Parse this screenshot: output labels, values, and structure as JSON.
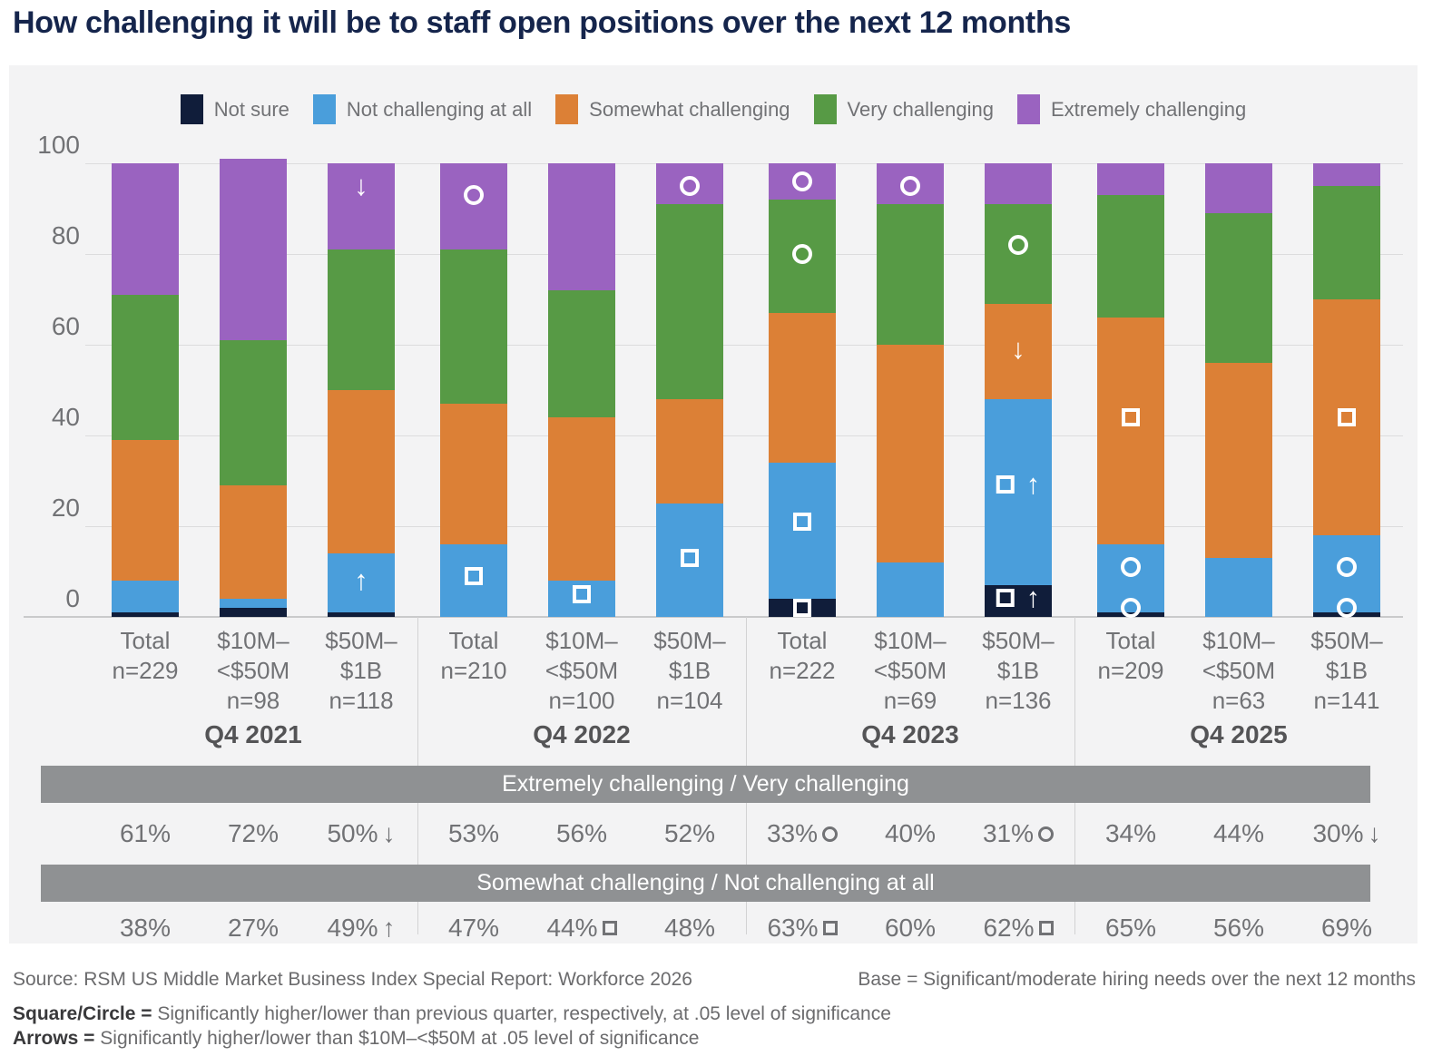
{
  "title": "How challenging it will be to staff open positions over the next 12 months",
  "colors": {
    "not_sure": "#101d3a",
    "not_challenging": "#4a9edb",
    "somewhat": "#dc8036",
    "very": "#579a45",
    "extremely": "#9a63c0",
    "panel_bg": "#f3f3f4",
    "band_gray": "#8f9193",
    "title_navy": "#15254c",
    "text_gray": "#717275"
  },
  "icons": {
    "arrow_up": "↑",
    "arrow_down": "↓"
  },
  "legend": {
    "items": [
      {
        "key": "not_sure",
        "label": "Not sure"
      },
      {
        "key": "not_challenging",
        "label": "Not challenging at all"
      },
      {
        "key": "somewhat",
        "label": "Somewhat challenging"
      },
      {
        "key": "very",
        "label": "Very challenging"
      },
      {
        "key": "extremely",
        "label": "Extremely challenging"
      }
    ]
  },
  "y_axis": {
    "ticks": [
      "100",
      "80",
      "60",
      "40",
      "20",
      "0"
    ]
  },
  "chart_data": {
    "type": "bar",
    "stacked": true,
    "ylim": [
      0,
      100
    ],
    "grid": true,
    "legend_position": "top",
    "series_order": [
      "Not sure",
      "Not challenging at all",
      "Somewhat challenging",
      "Very challenging",
      "Extremely challenging"
    ],
    "groups": [
      {
        "quarter": "Q4 2021",
        "bars": [
          {
            "label_lines": [
              "Total"
            ],
            "n": "n=229",
            "values": {
              "not_sure": 1,
              "not_challenging": 7,
              "somewhat": 31,
              "very": 32,
              "extremely": 29
            },
            "markers": []
          },
          {
            "label_lines": [
              "$10M–",
              "<$50M"
            ],
            "n": "n=98",
            "values": {
              "not_sure": 2,
              "not_challenging": 2,
              "somewhat": 25,
              "very": 32,
              "extremely": 40
            },
            "markers": []
          },
          {
            "label_lines": [
              "$50M–",
              "$1B"
            ],
            "n": "n=118",
            "values": {
              "not_sure": 1,
              "not_challenging": 13,
              "somewhat": 36,
              "very": 31,
              "extremely": 19
            },
            "markers": [
              {
                "type": "arrow-down",
                "y": 95
              },
              {
                "type": "arrow-up",
                "y": 8
              }
            ]
          }
        ]
      },
      {
        "quarter": "Q4 2022",
        "bars": [
          {
            "label_lines": [
              "Total"
            ],
            "n": "n=210",
            "values": {
              "not_sure": 0,
              "not_challenging": 16,
              "somewhat": 31,
              "very": 34,
              "extremely": 19
            },
            "markers": [
              {
                "type": "circle",
                "y": 93
              },
              {
                "type": "square",
                "y": 9
              }
            ]
          },
          {
            "label_lines": [
              "$10M–",
              "<$50M"
            ],
            "n": "n=100",
            "values": {
              "not_sure": 0,
              "not_challenging": 8,
              "somewhat": 36,
              "very": 28,
              "extremely": 28
            },
            "markers": [
              {
                "type": "square",
                "y": 5
              }
            ]
          },
          {
            "label_lines": [
              "$50M–",
              "$1B"
            ],
            "n": "n=104",
            "values": {
              "not_sure": 0,
              "not_challenging": 25,
              "somewhat": 23,
              "very": 43,
              "extremely": 9
            },
            "markers": [
              {
                "type": "circle",
                "y": 95
              },
              {
                "type": "square",
                "y": 13
              }
            ]
          }
        ]
      },
      {
        "quarter": "Q4 2023",
        "bars": [
          {
            "label_lines": [
              "Total"
            ],
            "n": "n=222",
            "values": {
              "not_sure": 4,
              "not_challenging": 30,
              "somewhat": 33,
              "very": 25,
              "extremely": 8
            },
            "markers": [
              {
                "type": "circle",
                "y": 96
              },
              {
                "type": "circle",
                "y": 80
              },
              {
                "type": "square",
                "y": 21
              },
              {
                "type": "square",
                "y": 2
              }
            ]
          },
          {
            "label_lines": [
              "$10M–",
              "<$50M"
            ],
            "n": "n=69",
            "values": {
              "not_sure": 0,
              "not_challenging": 12,
              "somewhat": 48,
              "very": 31,
              "extremely": 9
            },
            "markers": [
              {
                "type": "circle",
                "y": 95
              }
            ]
          },
          {
            "label_lines": [
              "$50M–",
              "$1B"
            ],
            "n": "n=136",
            "values": {
              "not_sure": 7,
              "not_challenging": 41,
              "somewhat": 21,
              "very": 22,
              "extremely": 9
            },
            "markers": [
              {
                "type": "circle",
                "y": 82
              },
              {
                "type": "arrow-down",
                "y": 59
              },
              {
                "type": "square-up",
                "y": 29
              },
              {
                "type": "square-up",
                "y": 4
              }
            ]
          }
        ]
      },
      {
        "quarter": "Q4 2025",
        "bars": [
          {
            "label_lines": [
              "Total"
            ],
            "n": "n=209",
            "values": {
              "not_sure": 1,
              "not_challenging": 15,
              "somewhat": 50,
              "very": 27,
              "extremely": 7
            },
            "markers": [
              {
                "type": "square",
                "y": 44
              },
              {
                "type": "circle",
                "y": 11
              },
              {
                "type": "circle",
                "y": 2
              }
            ]
          },
          {
            "label_lines": [
              "$10M–",
              "<$50M"
            ],
            "n": "n=63",
            "values": {
              "not_sure": 0,
              "not_challenging": 13,
              "somewhat": 43,
              "very": 33,
              "extremely": 11
            },
            "markers": []
          },
          {
            "label_lines": [
              "$50M–",
              "$1B"
            ],
            "n": "n=141",
            "values": {
              "not_sure": 1,
              "not_challenging": 17,
              "somewhat": 52,
              "very": 25,
              "extremely": 5
            },
            "markers": [
              {
                "type": "square",
                "y": 44
              },
              {
                "type": "circle",
                "y": 11
              },
              {
                "type": "circle",
                "y": 2
              }
            ]
          }
        ]
      }
    ]
  },
  "table": {
    "rows": [
      {
        "header": "Extremely challenging / Very challenging",
        "cells": [
          {
            "text": "61%"
          },
          {
            "text": "72%"
          },
          {
            "text": "50%",
            "marker": "arrow-down"
          },
          {
            "text": "53%"
          },
          {
            "text": "56%"
          },
          {
            "text": "52%"
          },
          {
            "text": "33%",
            "marker": "circle"
          },
          {
            "text": "40%"
          },
          {
            "text": "31%",
            "marker": "circle"
          },
          {
            "text": "34%"
          },
          {
            "text": "44%"
          },
          {
            "text": "30%",
            "marker": "arrow-down"
          }
        ]
      },
      {
        "header": "Somewhat challenging / Not challenging at all",
        "cells": [
          {
            "text": "38%"
          },
          {
            "text": "27%"
          },
          {
            "text": "49%",
            "marker": "arrow-up"
          },
          {
            "text": "47%"
          },
          {
            "text": "44%",
            "marker": "square"
          },
          {
            "text": "48%"
          },
          {
            "text": "63%",
            "marker": "square"
          },
          {
            "text": "60%"
          },
          {
            "text": "62%",
            "marker": "square"
          },
          {
            "text": "65%"
          },
          {
            "text": "56%"
          },
          {
            "text": "69%"
          }
        ]
      }
    ]
  },
  "footer": {
    "source": "Source: RSM US Middle Market Business Index Special Report: Workforce 2026",
    "base": "Base = Significant/moderate hiring needs over the next 12 months",
    "note1_label": "Square/Circle =",
    "note1_text": "Significantly higher/lower than previous quarter, respectively, at .05 level of significance",
    "note2_label": "Arrows =",
    "note2_text": "Significantly higher/lower than $10M–<$50M at .05 level of significance"
  }
}
